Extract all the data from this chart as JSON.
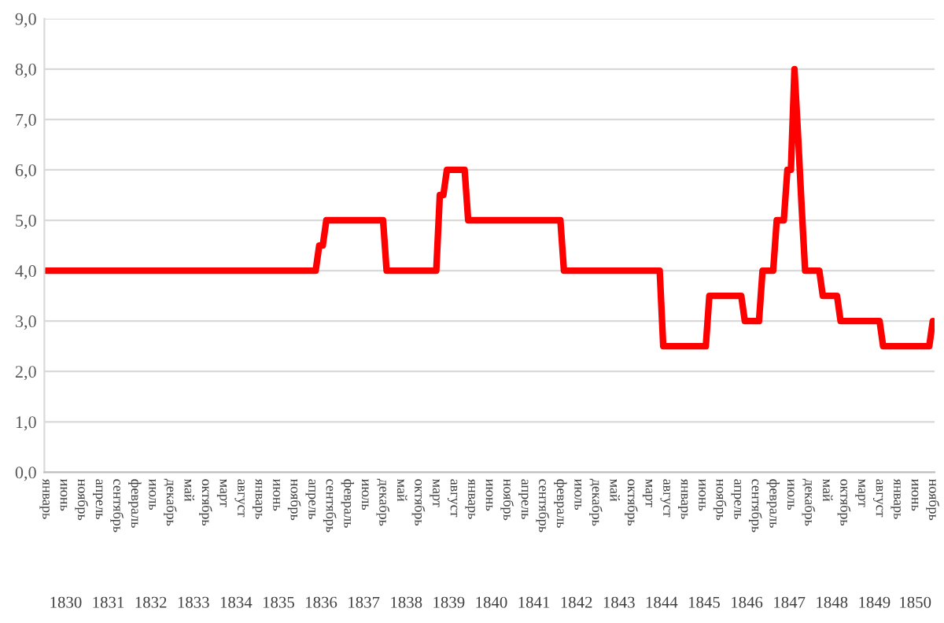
{
  "chart_data": {
    "type": "line",
    "categories": [
      "январь",
      null,
      null,
      null,
      null,
      "июнь",
      null,
      null,
      null,
      null,
      "ноябрь",
      null,
      null,
      null,
      null,
      "апрель",
      null,
      null,
      null,
      null,
      "сентябрь",
      null,
      null,
      null,
      null,
      "февраль",
      null,
      null,
      null,
      null,
      "июль",
      null,
      null,
      null,
      null,
      "декабрь",
      null,
      null,
      null,
      null,
      "май",
      null,
      null,
      null,
      null,
      "октябрь",
      null,
      null,
      null,
      null,
      "март",
      null,
      null,
      null,
      null,
      "август",
      null,
      null,
      null,
      null,
      "январь",
      null,
      null,
      null,
      null,
      "июнь",
      null,
      null,
      null,
      null,
      "ноябрь",
      null,
      null,
      null,
      null,
      "апрель",
      null,
      null,
      null,
      null,
      "сентябрь",
      null,
      null,
      null,
      null,
      "февраль",
      null,
      null,
      null,
      null,
      "июль",
      null,
      null,
      null,
      null,
      "декабрь",
      null,
      null,
      null,
      null,
      "май",
      null,
      null,
      null,
      null,
      "октябрь",
      null,
      null,
      null,
      null,
      "март",
      null,
      null,
      null,
      null,
      "август",
      null,
      null,
      null,
      null,
      "январь",
      null,
      null,
      null,
      null,
      "июнь",
      null,
      null,
      null,
      null,
      "ноябрь",
      null,
      null,
      null,
      null,
      "апрель",
      null,
      null,
      null,
      null,
      "сентябрь",
      null,
      null,
      null,
      null,
      "февраль",
      null,
      null,
      null,
      null,
      "июль",
      null,
      null,
      null,
      null,
      "декабрь",
      null,
      null,
      null,
      null,
      "май",
      null,
      null,
      null,
      null,
      "октябрь",
      null,
      null,
      null,
      null,
      "март",
      null,
      null,
      null,
      null,
      "август",
      null,
      null,
      null,
      null,
      "январь",
      null,
      null,
      null,
      null,
      "июнь",
      null,
      null,
      null,
      null,
      "ноябрь",
      null,
      null,
      null,
      null,
      "апрель",
      null,
      null,
      null,
      null,
      "сентябрь",
      null,
      null,
      null,
      null,
      "февраль",
      null,
      null,
      null,
      null,
      "июль",
      null,
      null,
      null,
      null,
      "декабрь",
      null,
      null,
      null,
      null,
      "май",
      null,
      null,
      null,
      null,
      "октябрь",
      null,
      null,
      null,
      null,
      "март",
      null,
      null,
      null,
      null,
      "август",
      null,
      null,
      null,
      null,
      "январь",
      null,
      null,
      null,
      null,
      "июнь",
      null,
      null,
      null,
      null,
      "ноябрь"
    ],
    "series": [
      {
        "color": "#ff0000",
        "values": [
          4.0,
          4.0,
          4.0,
          4.0,
          4.0,
          4.0,
          4.0,
          4.0,
          4.0,
          4.0,
          4.0,
          4.0,
          4.0,
          4.0,
          4.0,
          4.0,
          4.0,
          4.0,
          4.0,
          4.0,
          4.0,
          4.0,
          4.0,
          4.0,
          4.0,
          4.0,
          4.0,
          4.0,
          4.0,
          4.0,
          4.0,
          4.0,
          4.0,
          4.0,
          4.0,
          4.0,
          4.0,
          4.0,
          4.0,
          4.0,
          4.0,
          4.0,
          4.0,
          4.0,
          4.0,
          4.0,
          4.0,
          4.0,
          4.0,
          4.0,
          4.0,
          4.0,
          4.0,
          4.0,
          4.0,
          4.0,
          4.0,
          4.0,
          4.0,
          4.0,
          4.0,
          4.0,
          4.0,
          4.0,
          4.0,
          4.0,
          4.0,
          4.0,
          4.0,
          4.0,
          4.0,
          4.0,
          4.0,
          4.0,
          4.0,
          4.0,
          4.0,
          4.5,
          4.5,
          5.0,
          5.0,
          5.0,
          5.0,
          5.0,
          5.0,
          5.0,
          5.0,
          5.0,
          5.0,
          5.0,
          5.0,
          5.0,
          5.0,
          5.0,
          5.0,
          5.0,
          4.0,
          4.0,
          4.0,
          4.0,
          4.0,
          4.0,
          4.0,
          4.0,
          4.0,
          4.0,
          4.0,
          4.0,
          4.0,
          4.0,
          4.0,
          5.5,
          5.5,
          6.0,
          6.0,
          6.0,
          6.0,
          6.0,
          6.0,
          5.0,
          5.0,
          5.0,
          5.0,
          5.0,
          5.0,
          5.0,
          5.0,
          5.0,
          5.0,
          5.0,
          5.0,
          5.0,
          5.0,
          5.0,
          5.0,
          5.0,
          5.0,
          5.0,
          5.0,
          5.0,
          5.0,
          5.0,
          5.0,
          5.0,
          5.0,
          5.0,
          4.0,
          4.0,
          4.0,
          4.0,
          4.0,
          4.0,
          4.0,
          4.0,
          4.0,
          4.0,
          4.0,
          4.0,
          4.0,
          4.0,
          4.0,
          4.0,
          4.0,
          4.0,
          4.0,
          4.0,
          4.0,
          4.0,
          4.0,
          4.0,
          4.0,
          4.0,
          4.0,
          4.0,
          2.5,
          2.5,
          2.5,
          2.5,
          2.5,
          2.5,
          2.5,
          2.5,
          2.5,
          2.5,
          2.5,
          2.5,
          2.5,
          3.5,
          3.5,
          3.5,
          3.5,
          3.5,
          3.5,
          3.5,
          3.5,
          3.5,
          3.5,
          3.0,
          3.0,
          3.0,
          3.0,
          3.0,
          4.0,
          4.0,
          4.0,
          4.0,
          5.0,
          5.0,
          5.0,
          6.0,
          6.0,
          8.0,
          6.7,
          5.3,
          4.0,
          4.0,
          4.0,
          4.0,
          4.0,
          3.5,
          3.5,
          3.5,
          3.5,
          3.5,
          3.0,
          3.0,
          3.0,
          3.0,
          3.0,
          3.0,
          3.0,
          3.0,
          3.0,
          3.0,
          3.0,
          3.0,
          2.5,
          2.5,
          2.5,
          2.5,
          2.5,
          2.5,
          2.5,
          2.5,
          2.5,
          2.5,
          2.5,
          2.5,
          2.5,
          2.5,
          3.0
        ]
      }
    ],
    "ylim": [
      0,
      9
    ],
    "yticks": [
      {
        "value": 0,
        "label": "0,0"
      },
      {
        "value": 1,
        "label": "1,0"
      },
      {
        "value": 2,
        "label": "2,0"
      },
      {
        "value": 3,
        "label": "3,0"
      },
      {
        "value": 4,
        "label": "4,0"
      },
      {
        "value": 5,
        "label": "5,0"
      },
      {
        "value": 6,
        "label": "6,0"
      },
      {
        "value": 7,
        "label": "7,0"
      },
      {
        "value": 8,
        "label": "8,0"
      },
      {
        "value": 9,
        "label": "9,0"
      }
    ],
    "grid": "y",
    "line_style": "solid",
    "annotations": [
      "1830",
      "1831",
      "1832",
      "1833",
      "1834",
      "1835",
      "1836",
      "1837",
      "1838",
      "1839",
      "1840",
      "1841",
      "1842",
      "1843",
      "1844",
      "1845",
      "1846",
      "1847",
      "1848",
      "1849",
      "1850"
    ]
  }
}
